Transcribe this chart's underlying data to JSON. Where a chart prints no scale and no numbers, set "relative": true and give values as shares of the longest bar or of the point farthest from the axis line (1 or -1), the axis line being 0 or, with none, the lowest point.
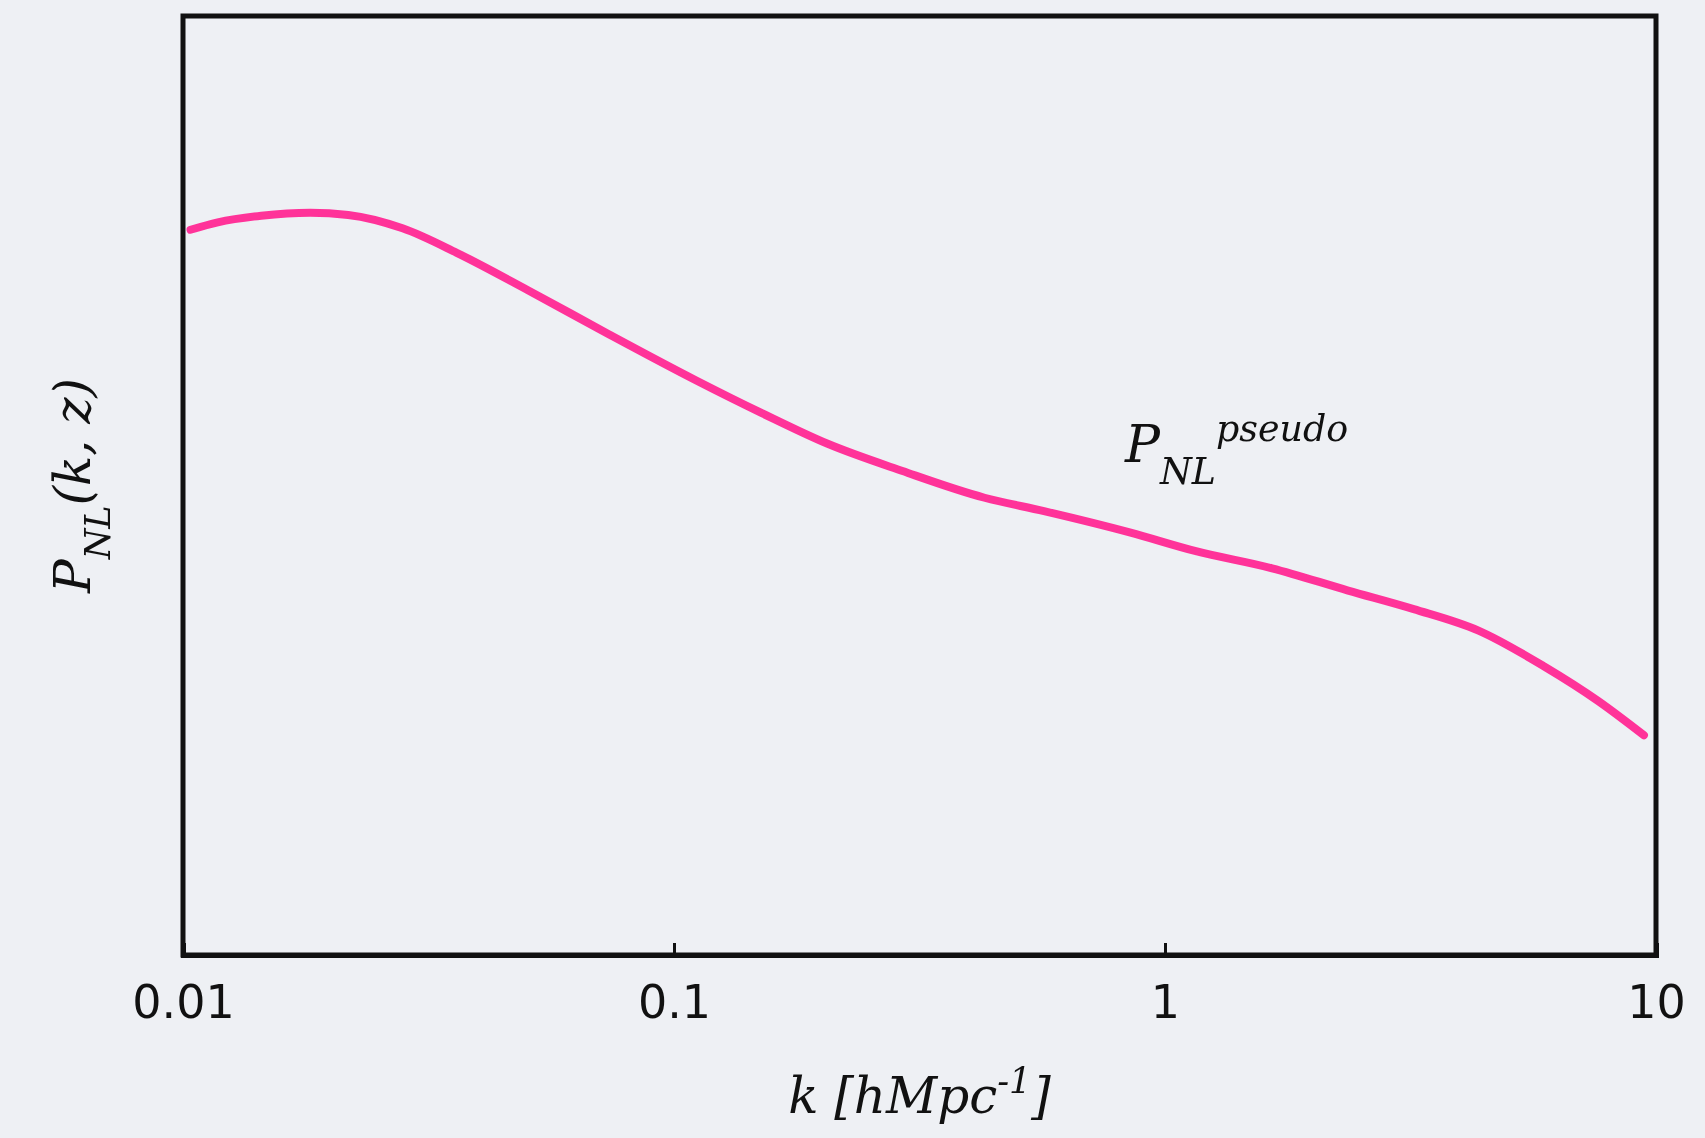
{
  "chart_data": {
    "type": "line",
    "relative": true,
    "xlabel": "k [hMpc$^{-1}$]",
    "ylabel": "P$_{NL}$(k, z)",
    "annotations": [
      "P$_{NL}$$^{pseudo}$"
    ],
    "xlim": [
      0.01,
      10
    ],
    "xticks": [
      0.01,
      0.1,
      1,
      10
    ],
    "log": "x",
    "grid": false,
    "tick_labels": "x",
    "marker": "none",
    "line_style": "solid",
    "series": [
      {
        "color": "#ff3399",
        "x": [
          0.01036,
          0.01177,
          0.01443,
          0.01816,
          0.0217,
          0.028,
          0.0361,
          0.0503,
          0.0738,
          0.111,
          0.151,
          0.205,
          0.292,
          0.429,
          0.567,
          0.851,
          1.156,
          1.652,
          2.36,
          3.21,
          4.35,
          5.91,
          7.63,
          9.45
        ],
        "values": [
          0.977,
          0.987,
          0.996,
          1,
          0.997,
          0.979,
          0.946,
          0.896,
          0.836,
          0.774,
          0.73,
          0.689,
          0.652,
          0.616,
          0.598,
          0.569,
          0.544,
          0.521,
          0.491,
          0.466,
          0.437,
          0.389,
          0.342,
          0.296
        ]
      }
    ]
  }
}
